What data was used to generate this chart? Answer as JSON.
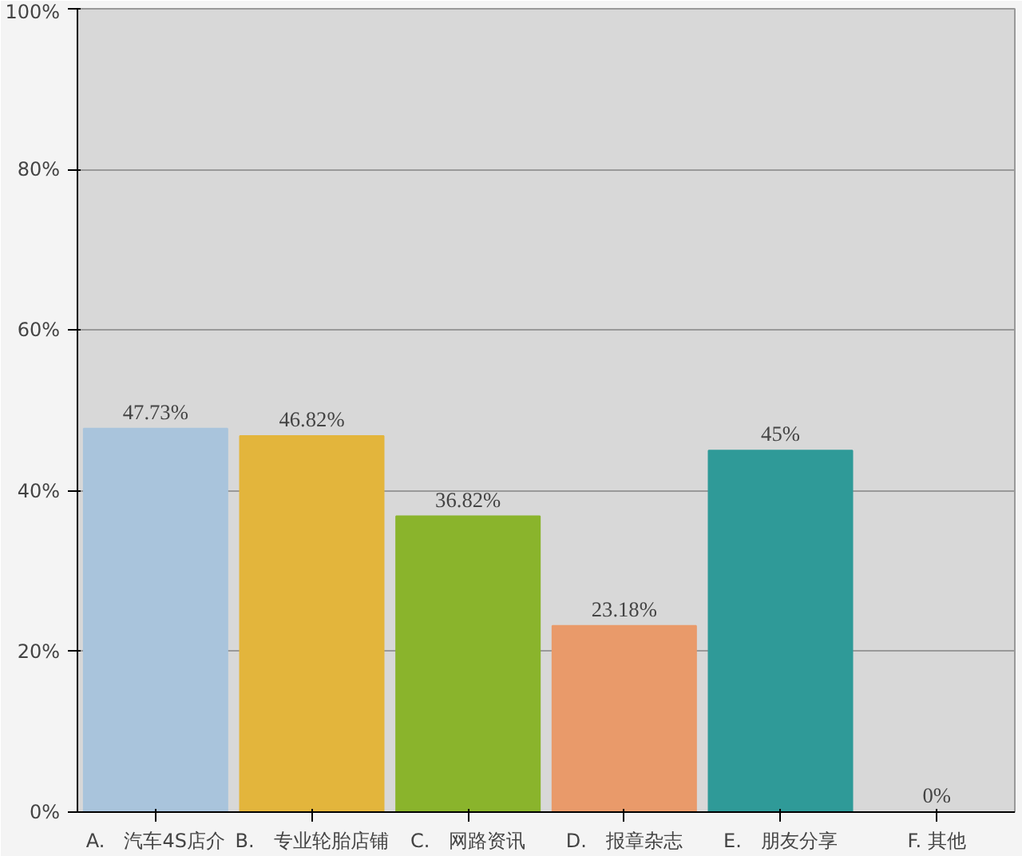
{
  "chart_data": {
    "type": "bar",
    "categories": [
      "A.　汽车4S店介",
      "B.　专业轮胎店铺",
      "C.　网路资讯",
      "D.　报章杂志",
      "E.　朋友分享",
      "F. 其他"
    ],
    "values": [
      47.73,
      46.82,
      36.82,
      23.18,
      45,
      0
    ],
    "value_labels": [
      "47.73%",
      "46.82%",
      "36.82%",
      "23.18%",
      "45%",
      "0%"
    ],
    "colors": [
      "#a9c4dc",
      "#e3b53c",
      "#8ab42c",
      "#e99a6a",
      "#2f9a98",
      "#e05a64"
    ],
    "ylim": [
      0,
      100
    ],
    "yticks": [
      {
        "value": 0,
        "label": "0%"
      },
      {
        "value": 20,
        "label": "20%"
      },
      {
        "value": 40,
        "label": "40%"
      },
      {
        "value": 60,
        "label": "60%"
      },
      {
        "value": 80,
        "label": "80%"
      },
      {
        "value": 100,
        "label": "100%"
      }
    ],
    "grid": "y"
  }
}
